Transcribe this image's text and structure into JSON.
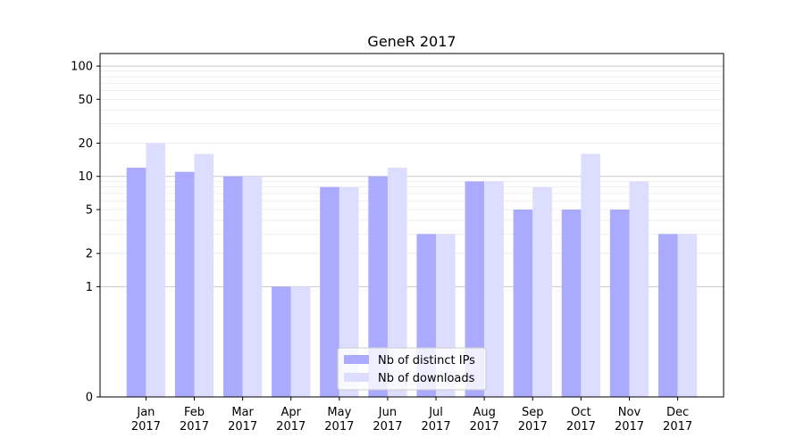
{
  "chart_data": {
    "type": "bar",
    "title": "GeneR 2017",
    "xlabel": "",
    "ylabel": "",
    "yscale": "symlog",
    "ylim": [
      0,
      130
    ],
    "y_ticks": [
      0,
      1,
      2,
      5,
      10,
      20,
      50,
      100
    ],
    "categories": [
      [
        "Jan",
        "2017"
      ],
      [
        "Feb",
        "2017"
      ],
      [
        "Mar",
        "2017"
      ],
      [
        "Apr",
        "2017"
      ],
      [
        "May",
        "2017"
      ],
      [
        "Jun",
        "2017"
      ],
      [
        "Jul",
        "2017"
      ],
      [
        "Aug",
        "2017"
      ],
      [
        "Sep",
        "2017"
      ],
      [
        "Oct",
        "2017"
      ],
      [
        "Nov",
        "2017"
      ],
      [
        "Dec",
        "2017"
      ]
    ],
    "series": [
      {
        "name": "Nb of distinct IPs",
        "color": "#aaaaff",
        "values": [
          12,
          11,
          10,
          1,
          8,
          10,
          3,
          9,
          5,
          5,
          5,
          3
        ]
      },
      {
        "name": "Nb of downloads",
        "color": "#ddddff",
        "values": [
          20,
          16,
          10,
          1,
          8,
          12,
          3,
          9,
          8,
          16,
          9,
          3
        ]
      }
    ],
    "grid": true,
    "legend_position": "bottom-center"
  }
}
